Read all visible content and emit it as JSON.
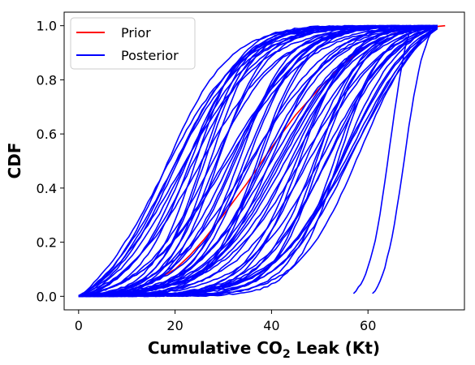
{
  "chart_data": {
    "type": "line",
    "xlabel": "Cumulative CO",
    "xlabel_subscript": "2",
    "xlabel_suffix": " Leak (Kt)",
    "ylabel": "CDF",
    "xlim": [
      -3,
      80
    ],
    "ylim": [
      -0.05,
      1.05
    ],
    "x_ticks": [
      0,
      20,
      40,
      60
    ],
    "y_ticks": [
      0.0,
      0.2,
      0.4,
      0.6,
      0.8,
      1.0
    ],
    "x_tick_labels": [
      "0",
      "20",
      "40",
      "60"
    ],
    "y_tick_labels": [
      "0.0",
      "0.2",
      "0.4",
      "0.6",
      "0.8",
      "1.0"
    ],
    "legend_position": "top-left",
    "grid": false,
    "series": [
      {
        "name": "Prior",
        "color": "#ff0000",
        "curve_count": 1,
        "x": [
          0,
          5,
          10,
          15,
          20,
          23,
          26,
          30,
          35,
          40,
          45,
          50,
          55,
          60,
          65,
          70,
          76
        ],
        "y": [
          0.0,
          0.004,
          0.02,
          0.05,
          0.1,
          0.15,
          0.21,
          0.3,
          0.42,
          0.55,
          0.67,
          0.77,
          0.86,
          0.93,
          0.97,
          0.99,
          1.0
        ]
      },
      {
        "name": "Posterior",
        "color": "#0000ff",
        "curve_count": 60,
        "median_range": [
          17,
          59
        ],
        "spread_range": [
          4.5,
          9
        ],
        "support_range": [
          0,
          75
        ],
        "isolated_curves": [
          {
            "x_start": 57,
            "x_end": 69,
            "median": 64.5
          },
          {
            "x_start": 61,
            "x_end": 74,
            "median": 67.5
          }
        ]
      }
    ]
  }
}
